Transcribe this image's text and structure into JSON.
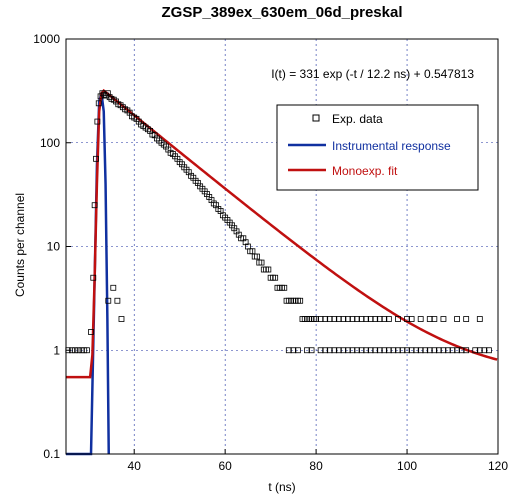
{
  "chart_data": {
    "type": "scatter",
    "title": "ZGSP_389ex_630em_06d_preskal",
    "xlabel": "t (ns)",
    "ylabel": "Counts per channel",
    "xlim": [
      25,
      120
    ],
    "ylim": [
      0.1,
      1000
    ],
    "yscale": "log",
    "grid": true,
    "legend_position": "upper-right",
    "x_ticks": [
      40,
      60,
      80,
      100,
      120
    ],
    "x_tick_labels": [
      "40",
      "60",
      "80",
      "100",
      "120"
    ],
    "y_ticks": [
      0.1,
      1,
      10,
      100,
      1000
    ],
    "y_tick_labels": [
      "0.1",
      "1",
      "10",
      "100",
      "1000"
    ],
    "annotation": "I(t) = 331 exp (-t / 12.2 ns) + 0.547813",
    "fit": {
      "amplitude": 331,
      "tau_ns": 12.2,
      "offset": 0.547813,
      "onset_ns": 32.8
    },
    "series": [
      {
        "name": "Exp. data",
        "style": "open-square",
        "color": "#000000"
      },
      {
        "name": "Instrumental response",
        "style": "line",
        "color": "#1030a0",
        "x": [
          25,
          30.5,
          31.2,
          31.8,
          32.3,
          32.8,
          33.3,
          33.7,
          34.1,
          34.4
        ],
        "y": [
          0.1,
          0.1,
          3,
          60,
          250,
          300,
          200,
          40,
          2,
          0.1
        ]
      },
      {
        "name": "Monoexp. fit",
        "style": "line",
        "color": "#c01010",
        "x_before_onset": [
          25,
          30.3,
          30.8,
          31.3,
          31.8,
          32.3,
          32.8
        ],
        "y_before_onset": [
          0.55,
          0.55,
          0.9,
          5,
          40,
          200,
          300
        ]
      }
    ],
    "exp_data_points": [
      [
        30.5,
        1.5
      ],
      [
        31,
        5
      ],
      [
        31.3,
        25
      ],
      [
        31.6,
        70
      ],
      [
        31.9,
        160
      ],
      [
        32.2,
        240
      ],
      [
        32.6,
        280
      ],
      [
        33,
        300
      ],
      [
        33.4,
        290
      ],
      [
        33.8,
        285
      ],
      [
        34.2,
        300
      ],
      [
        34.6,
        275
      ],
      [
        35,
        265
      ],
      [
        35.5,
        260
      ],
      [
        36,
        250
      ],
      [
        36.5,
        235
      ],
      [
        37,
        230
      ],
      [
        37.5,
        220
      ],
      [
        38,
        210
      ],
      [
        38.5,
        205
      ],
      [
        39,
        195
      ],
      [
        39.5,
        180
      ],
      [
        40,
        175
      ],
      [
        40.5,
        170
      ],
      [
        41,
        160
      ],
      [
        41.5,
        150
      ],
      [
        42,
        145
      ],
      [
        42.5,
        140
      ],
      [
        43,
        135
      ],
      [
        43.5,
        130
      ],
      [
        44,
        120
      ],
      [
        44.5,
        118
      ],
      [
        45,
        110
      ],
      [
        45.5,
        105
      ],
      [
        46,
        100
      ],
      [
        46.5,
        96
      ],
      [
        47,
        92
      ],
      [
        47.5,
        86
      ],
      [
        48,
        80
      ],
      [
        48.5,
        78
      ],
      [
        49,
        74
      ],
      [
        49.5,
        70
      ],
      [
        50,
        65
      ],
      [
        50.5,
        62
      ],
      [
        51,
        58
      ],
      [
        51.5,
        55
      ],
      [
        52,
        52
      ],
      [
        52.5,
        48
      ],
      [
        53,
        46
      ],
      [
        53.5,
        43
      ],
      [
        54,
        41
      ],
      [
        54.5,
        38
      ],
      [
        55,
        36
      ],
      [
        55.5,
        34
      ],
      [
        56,
        32
      ],
      [
        56.5,
        30
      ],
      [
        57,
        28
      ],
      [
        57.5,
        26
      ],
      [
        58,
        25
      ],
      [
        58.5,
        23
      ],
      [
        59,
        22
      ],
      [
        59.5,
        20
      ],
      [
        60,
        19
      ],
      [
        60.5,
        18
      ],
      [
        61,
        17
      ],
      [
        61.5,
        16
      ],
      [
        62,
        15
      ],
      [
        62.5,
        14
      ],
      [
        63,
        13
      ],
      [
        63.5,
        12
      ],
      [
        64,
        12
      ],
      [
        64.5,
        11
      ],
      [
        65,
        10
      ],
      [
        65.5,
        9
      ],
      [
        66,
        9
      ],
      [
        66.5,
        8
      ],
      [
        67,
        8
      ],
      [
        67.5,
        7
      ],
      [
        68,
        7
      ],
      [
        68.5,
        6
      ],
      [
        69,
        6
      ],
      [
        69.5,
        6
      ],
      [
        70,
        5
      ],
      [
        70.5,
        5
      ],
      [
        71,
        5
      ],
      [
        71.5,
        4
      ],
      [
        72,
        4
      ],
      [
        72.5,
        4
      ],
      [
        73,
        4
      ],
      [
        73.5,
        3
      ],
      [
        74,
        3
      ],
      [
        74.5,
        3
      ],
      [
        75,
        3
      ],
      [
        75.5,
        3
      ],
      [
        76,
        3
      ],
      [
        76.5,
        3
      ],
      [
        77,
        2
      ],
      [
        77.5,
        2
      ],
      [
        78,
        2
      ],
      [
        78.5,
        2
      ],
      [
        79,
        2
      ],
      [
        79.5,
        2
      ],
      [
        80,
        2
      ],
      [
        81,
        2
      ],
      [
        82,
        2
      ],
      [
        83,
        2
      ],
      [
        84,
        2
      ],
      [
        85,
        2
      ],
      [
        86,
        2
      ],
      [
        87,
        2
      ],
      [
        88,
        2
      ],
      [
        89,
        2
      ],
      [
        90,
        2
      ],
      [
        91,
        2
      ],
      [
        92,
        2
      ],
      [
        93,
        2
      ],
      [
        94,
        2
      ],
      [
        95,
        2
      ],
      [
        96,
        2
      ],
      [
        98,
        2
      ],
      [
        100,
        2
      ],
      [
        101,
        2
      ],
      [
        103,
        2
      ],
      [
        105,
        2
      ],
      [
        106,
        2
      ],
      [
        108,
        2
      ],
      [
        111,
        2
      ],
      [
        113,
        2
      ],
      [
        116,
        2
      ],
      [
        74,
        1
      ],
      [
        76,
        1
      ],
      [
        78,
        1
      ],
      [
        81,
        1
      ],
      [
        83,
        1
      ],
      [
        84,
        1
      ],
      [
        86,
        1
      ],
      [
        87,
        1
      ],
      [
        89,
        1
      ],
      [
        90,
        1
      ],
      [
        92,
        1
      ],
      [
        93,
        1
      ],
      [
        94,
        1
      ],
      [
        95,
        1
      ],
      [
        97,
        1
      ],
      [
        98,
        1
      ],
      [
        99,
        1
      ],
      [
        100,
        1
      ],
      [
        101,
        1
      ],
      [
        102,
        1
      ],
      [
        103,
        1
      ],
      [
        104,
        1
      ],
      [
        105,
        1
      ],
      [
        106,
        1
      ],
      [
        107,
        1
      ],
      [
        108,
        1
      ],
      [
        109,
        1
      ],
      [
        110,
        1
      ],
      [
        111,
        1
      ],
      [
        112,
        1
      ],
      [
        113,
        1
      ],
      [
        115,
        1
      ],
      [
        116,
        1
      ],
      [
        117,
        1
      ],
      [
        118,
        1
      ],
      [
        25.5,
        1
      ],
      [
        26.3,
        1
      ],
      [
        27,
        1
      ],
      [
        27.7,
        1
      ],
      [
        28.4,
        1
      ],
      [
        29,
        1
      ],
      [
        29.6,
        1
      ],
      [
        34.3,
        3
      ],
      [
        35.4,
        4
      ],
      [
        36.3,
        3
      ],
      [
        37.2,
        2
      ],
      [
        75,
        1
      ],
      [
        79,
        1
      ],
      [
        82,
        1
      ],
      [
        85,
        1
      ],
      [
        88,
        1
      ],
      [
        91,
        1
      ],
      [
        96,
        1
      ]
    ]
  }
}
